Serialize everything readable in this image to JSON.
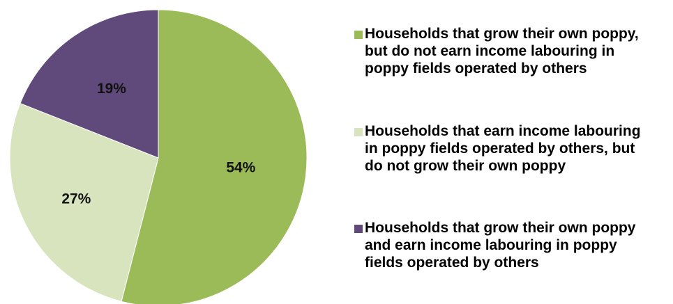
{
  "chart_data": {
    "type": "pie",
    "title": "",
    "slices": [
      {
        "name": "Households that grow their own poppy, but do not earn income labouring in poppy fields operated by others",
        "value": 54,
        "label": "54%",
        "color": "#9BBB59"
      },
      {
        "name": "Households that earn income labouring in poppy fields operated by others, but do not grow their own poppy",
        "value": 27,
        "label": "27%",
        "color": "#D7E4BD"
      },
      {
        "name": "Households that grow their own poppy and earn income labouring in poppy fields operated by others",
        "value": 19,
        "label": "19%",
        "color": "#604A7B"
      }
    ],
    "legend_position": "right",
    "start_angle_deg": 0,
    "direction": "clockwise"
  },
  "legend": {
    "items": [
      {
        "line1": "Households that grow their own poppy,",
        "line2": "but do not earn income labouring in",
        "line3": "poppy fields operated by others"
      },
      {
        "line1": "Households that earn income labouring",
        "line2": "in poppy fields operated by others, but",
        "line3": "do not grow their own poppy"
      },
      {
        "line1": "Households that grow their own poppy",
        "line2": "and earn income labouring in poppy",
        "line3": "fields operated by others"
      }
    ]
  }
}
